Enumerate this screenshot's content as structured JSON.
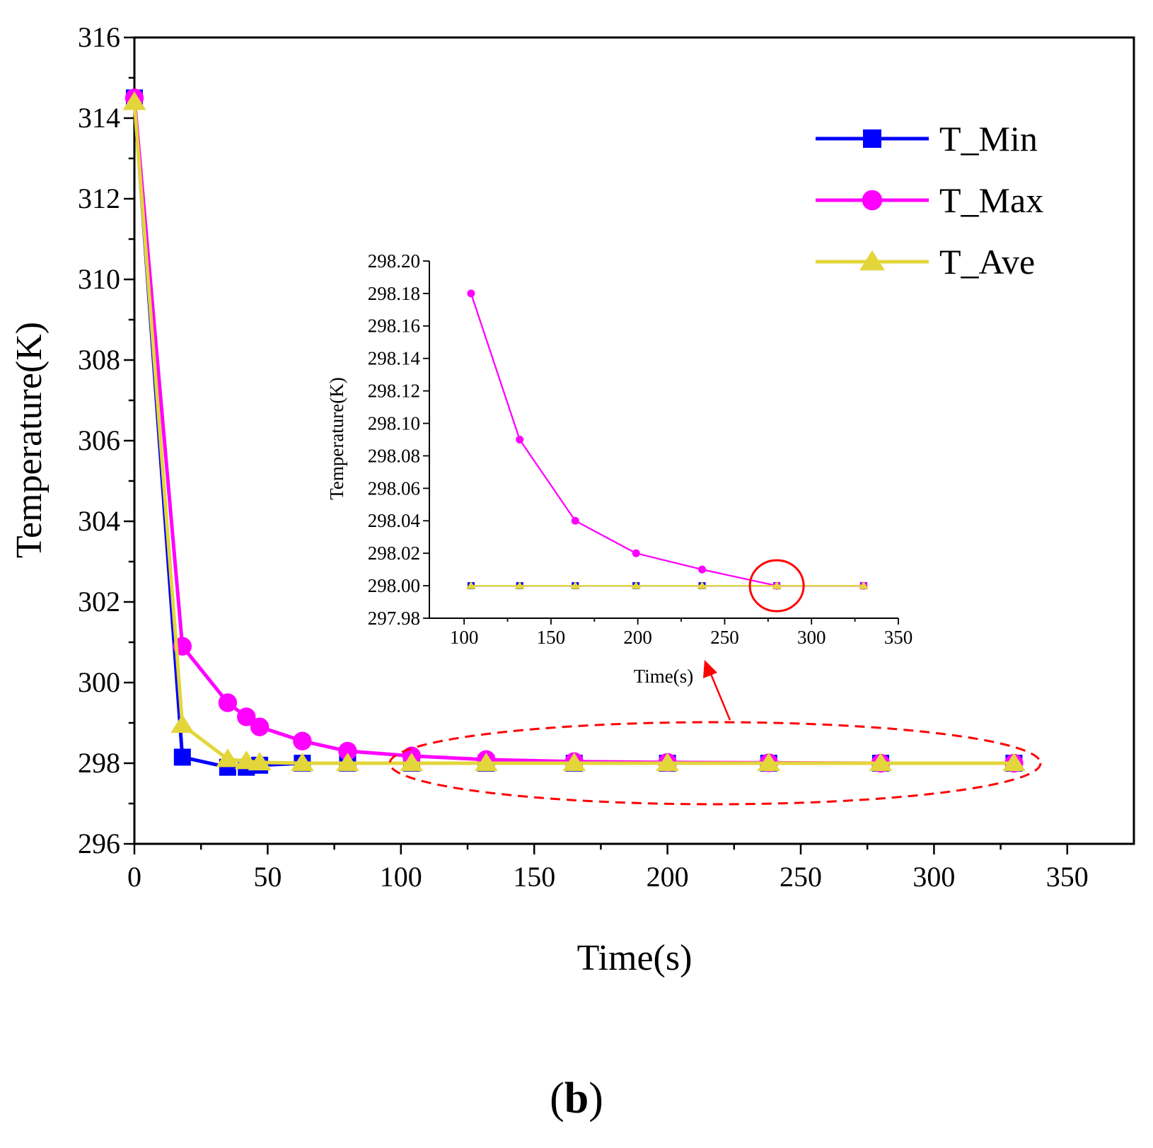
{
  "panel_label": {
    "open": "(",
    "letter": "b",
    "close": ")"
  },
  "colors": {
    "min": "#0000ff",
    "max": "#ff00ff",
    "ave": "#e3d63a",
    "highlight": "#ff0000",
    "axis": "#000000"
  },
  "chart_data": [
    {
      "id": "main",
      "type": "line",
      "title": "",
      "xlabel": "Time(s)",
      "ylabel": "Temperature(K)",
      "xlim": [
        0,
        375
      ],
      "ylim": [
        296,
        316
      ],
      "xticks": [
        0,
        50,
        100,
        150,
        200,
        250,
        300,
        350
      ],
      "yticks": [
        296,
        298,
        300,
        302,
        304,
        306,
        308,
        310,
        312,
        314,
        316
      ],
      "xtick_labels": [
        "0",
        "50",
        "100",
        "150",
        "200",
        "250",
        "300",
        "350"
      ],
      "ytick_labels": [
        "296",
        "298",
        "300",
        "302",
        "304",
        "306",
        "308",
        "310",
        "312",
        "314",
        "316"
      ],
      "legend_position": "top-right",
      "series": [
        {
          "name": "T_Min",
          "marker": "square",
          "x": [
            0,
            18,
            35,
            42,
            47,
            63,
            80,
            104,
            132,
            165,
            200,
            238,
            280,
            330
          ],
          "y": [
            314.5,
            298.15,
            297.9,
            297.9,
            297.95,
            298.0,
            298.0,
            298.0,
            298.0,
            298.0,
            298.0,
            298.0,
            298.0,
            298.0
          ]
        },
        {
          "name": "T_Max",
          "marker": "circle",
          "x": [
            0,
            18,
            35,
            42,
            47,
            63,
            80,
            104,
            132,
            165,
            200,
            238,
            280,
            330
          ],
          "y": [
            314.5,
            300.9,
            299.5,
            299.15,
            298.9,
            298.55,
            298.3,
            298.18,
            298.09,
            298.04,
            298.02,
            298.01,
            298.0,
            298.0
          ]
        },
        {
          "name": "T_Ave",
          "marker": "triangle",
          "x": [
            0,
            18,
            35,
            42,
            47,
            63,
            80,
            104,
            132,
            165,
            200,
            238,
            280,
            330
          ],
          "y": [
            314.4,
            298.95,
            298.1,
            298.05,
            298.02,
            298.0,
            298.0,
            298.0,
            298.0,
            298.0,
            298.0,
            298.0,
            298.0,
            298.0
          ]
        }
      ]
    },
    {
      "id": "inset",
      "type": "line",
      "title": "",
      "xlabel": "Time(s)",
      "ylabel": "Temperature(K)",
      "xlim": [
        80,
        350
      ],
      "ylim": [
        297.98,
        298.2
      ],
      "xticks": [
        100,
        150,
        200,
        250,
        300,
        350
      ],
      "yticks": [
        297.98,
        298.0,
        298.02,
        298.04,
        298.06,
        298.08,
        298.1,
        298.12,
        298.14,
        298.16,
        298.18,
        298.2
      ],
      "xtick_labels": [
        "100",
        "150",
        "200",
        "250",
        "300",
        "350"
      ],
      "ytick_labels": [
        "297.98",
        "298.00",
        "298.02",
        "298.04",
        "298.06",
        "298.08",
        "298.10",
        "298.12",
        "298.14",
        "298.16",
        "298.18",
        "298.20"
      ],
      "annotation": "circle around the T_Max point at x = 280, y = 298.00",
      "series": [
        {
          "name": "T_Min",
          "marker": "square",
          "x": [
            104,
            132,
            164,
            199,
            237,
            280,
            330
          ],
          "y": [
            298.0,
            298.0,
            298.0,
            298.0,
            298.0,
            298.0,
            298.0
          ]
        },
        {
          "name": "T_Max",
          "marker": "circle",
          "x": [
            104,
            132,
            164,
            199,
            237,
            280,
            330
          ],
          "y": [
            298.18,
            298.09,
            298.04,
            298.02,
            298.01,
            298.0,
            298.0
          ]
        },
        {
          "name": "T_Ave",
          "marker": "triangle",
          "x": [
            104,
            132,
            164,
            199,
            237,
            280,
            330
          ],
          "y": [
            298.0,
            298.0,
            298.0,
            298.0,
            298.0,
            298.0,
            298.0
          ]
        }
      ]
    }
  ]
}
